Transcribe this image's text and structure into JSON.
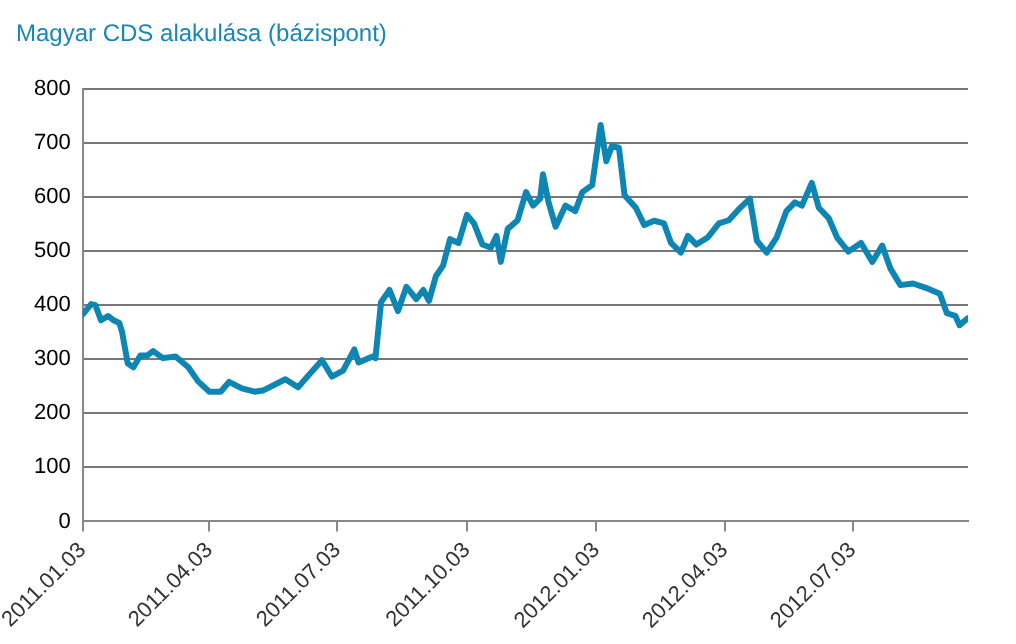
{
  "chart_data": {
    "type": "line",
    "title": "Magyar CDS alakulása (bázispont)",
    "x": [
      "2011-01-03",
      "2011-01-09",
      "2011-01-12",
      "2011-01-16",
      "2011-01-21",
      "2011-01-25",
      "2011-01-29",
      "2011-01-31",
      "2011-02-04",
      "2011-02-08",
      "2011-02-13",
      "2011-02-18",
      "2011-02-22",
      "2011-03-01",
      "2011-03-10",
      "2011-03-19",
      "2011-03-26",
      "2011-04-03",
      "2011-04-11",
      "2011-04-17",
      "2011-04-26",
      "2011-05-05",
      "2011-05-11",
      "2011-05-27",
      "2011-06-05",
      "2011-06-11",
      "2011-06-22",
      "2011-06-29",
      "2011-07-07",
      "2011-07-15",
      "2011-07-18",
      "2011-07-28",
      "2011-07-30",
      "2011-08-03",
      "2011-08-09",
      "2011-08-15",
      "2011-08-21",
      "2011-08-28",
      "2011-09-02",
      "2011-09-06",
      "2011-09-11",
      "2011-09-16",
      "2011-09-21",
      "2011-09-27",
      "2011-10-03",
      "2011-10-08",
      "2011-10-14",
      "2011-10-20",
      "2011-10-24",
      "2011-10-27",
      "2011-11-01",
      "2011-11-08",
      "2011-11-14",
      "2011-11-19",
      "2011-11-24",
      "2011-11-26",
      "2011-11-30",
      "2011-12-05",
      "2011-12-12",
      "2011-12-19",
      "2011-12-24",
      "2011-12-31",
      "2012-01-06",
      "2012-01-10",
      "2012-01-14",
      "2012-01-19",
      "2012-01-23",
      "2012-01-31",
      "2012-02-06",
      "2012-02-13",
      "2012-02-20",
      "2012-02-25",
      "2012-03-03",
      "2012-03-08",
      "2012-03-14",
      "2012-03-22",
      "2012-03-30",
      "2012-04-06",
      "2012-04-13",
      "2012-04-21",
      "2012-04-26",
      "2012-05-03",
      "2012-05-10",
      "2012-05-17",
      "2012-05-23",
      "2012-05-28",
      "2012-06-04",
      "2012-06-09",
      "2012-06-16",
      "2012-06-22",
      "2012-06-30",
      "2012-07-09",
      "2012-07-17",
      "2012-07-24",
      "2012-07-30",
      "2012-08-06",
      "2012-08-15",
      "2012-08-24",
      "2012-09-03",
      "2012-09-08",
      "2012-09-14",
      "2012-09-17",
      "2012-09-23"
    ],
    "series": [
      {
        "color": "#0e86b4",
        "values": [
          383,
          402,
          400,
          372,
          380,
          372,
          367,
          350,
          292,
          285,
          307,
          307,
          315,
          302,
          305,
          285,
          259,
          240,
          240,
          258,
          246,
          240,
          242,
          263,
          248,
          266,
          298,
          268,
          279,
          318,
          294,
          305,
          302,
          406,
          428,
          389,
          434,
          411,
          428,
          408,
          454,
          473,
          522,
          515,
          567,
          551,
          512,
          506,
          528,
          480,
          541,
          557,
          609,
          584,
          597,
          642,
          590,
          545,
          584,
          574,
          609,
          622,
          733,
          666,
          694,
          691,
          603,
          580,
          548,
          556,
          551,
          515,
          497,
          528,
          512,
          525,
          551,
          557,
          577,
          597,
          519,
          497,
          525,
          574,
          590,
          584,
          626,
          580,
          561,
          525,
          499,
          515,
          480,
          510,
          467,
          437,
          440,
          432,
          421,
          385,
          380,
          363,
          376
        ]
      }
    ],
    "xlim": [
      "2011-01-03",
      "2012-09-23"
    ],
    "xticks": [
      {
        "value": "2011-01-03",
        "label": "2011.01.03"
      },
      {
        "value": "2011-04-03",
        "label": "2011.04.03"
      },
      {
        "value": "2011-07-03",
        "label": "2011.07.03"
      },
      {
        "value": "2011-10-03",
        "label": "2011.10.03"
      },
      {
        "value": "2012-01-03",
        "label": "2012.01.03"
      },
      {
        "value": "2012-04-03",
        "label": "2012.04.03"
      },
      {
        "value": "2012-07-03",
        "label": "2012.07.03"
      }
    ],
    "ylim": [
      0,
      800
    ],
    "yticks": [
      0,
      100,
      200,
      300,
      400,
      500,
      600,
      700,
      800
    ],
    "grid": "y",
    "legend": false,
    "marker": "none",
    "line_style": "solid"
  }
}
